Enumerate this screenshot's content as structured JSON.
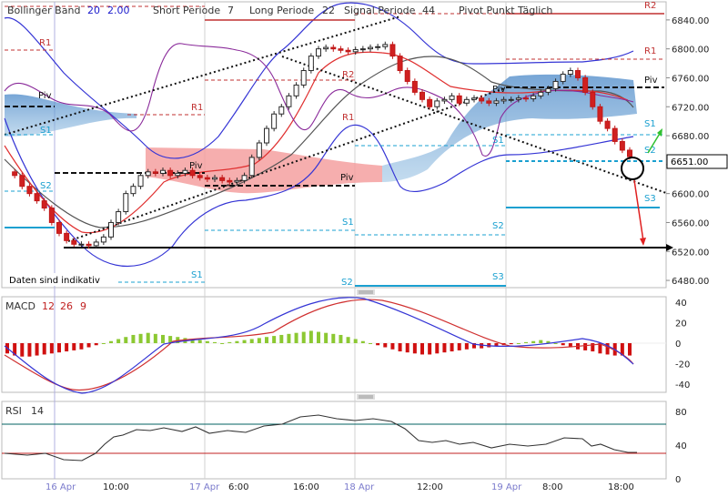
{
  "colors": {
    "up": "#7fbf1f",
    "down": "#d01010",
    "bb": "#3030e0",
    "ma_short": "#e03030",
    "ma_long": "#555555",
    "ichimoku_blue": "#5a9ad0",
    "ichimoku_red": "#f08080",
    "purple": "#8a2a9a",
    "pivot_blue": "#1aa0d0",
    "pivot_red": "#c03030",
    "rsi": "#006060"
  },
  "header": {
    "bb_label": "Bollinger Band",
    "bb_period": "20",
    "bb_dev": "2.00",
    "short_label": "Short Periode",
    "short_val": "7",
    "long_label": "Long Periode",
    "long_val": "22",
    "signal_label": "Signal Periode",
    "signal_val": "44",
    "pivot_label": "Pivot Punkt  Täglich"
  },
  "disclaimer": "Daten sind indikativ",
  "current_price": "6651.00",
  "pivot_labels": {
    "r2": "R2",
    "r1": "R1",
    "piv": "Piv",
    "s1": "S1",
    "s2": "S2",
    "s3": "S3"
  },
  "macd_panel": {
    "label": "MACD",
    "p1": "12",
    "p2": "26",
    "p3": "9"
  },
  "rsi_panel": {
    "label": "RSI",
    "p1": "14"
  },
  "chart_data": [
    {
      "type": "candlestick",
      "y_ticks": [
        "6840.00",
        "6800.00",
        "6760.00",
        "6720.00",
        "6680.00",
        "6640.00",
        "6600.00",
        "6560.00",
        "6520.00",
        "6480.00"
      ],
      "ylim": [
        6470,
        6865
      ],
      "x_ticks": [
        "16 Apr",
        "10:00",
        "17 Apr",
        "6:00",
        "16:00",
        "18 Apr",
        "12:00",
        "19 Apr",
        "8:00",
        "18:00"
      ],
      "close_series": [
        6630,
        6625,
        6610,
        6600,
        6590,
        6580,
        6560,
        6545,
        6535,
        6530,
        6530,
        6528,
        6533,
        6540,
        6560,
        6575,
        6600,
        6610,
        6625,
        6630,
        6628,
        6632,
        6625,
        6628,
        6632,
        6625,
        6622,
        6620,
        6622,
        6618,
        6616,
        6618,
        6625,
        6650,
        6670,
        6690,
        6710,
        6720,
        6735,
        6750,
        6770,
        6790,
        6800,
        6802,
        6800,
        6798,
        6796,
        6799,
        6800,
        6802,
        6803,
        6806,
        6790,
        6770,
        6755,
        6740,
        6730,
        6720,
        6728,
        6730,
        6735,
        6725,
        6730,
        6732,
        6728,
        6725,
        6728,
        6730,
        6730,
        6732,
        6731,
        6735,
        6740,
        6745,
        6755,
        6765,
        6770,
        6760,
        6740,
        6720,
        6700,
        6690,
        6672,
        6660,
        6651
      ]
    },
    {
      "type": "bar",
      "name": "MACD",
      "y_ticks": [
        "40",
        "20",
        "0",
        "-20",
        "-40"
      ],
      "ylim": [
        -46,
        46
      ],
      "histogram": [
        -10,
        -12,
        -13,
        -13,
        -12,
        -11,
        -10,
        -9,
        -8,
        -7,
        -6,
        -4,
        -2,
        0,
        2,
        4,
        6,
        8,
        9,
        10,
        9,
        8,
        7,
        6,
        5,
        4,
        3,
        2,
        1,
        0,
        1,
        2,
        3,
        4,
        5,
        6,
        7,
        8,
        9,
        10,
        11,
        12,
        11,
        10,
        9,
        8,
        6,
        4,
        2,
        0,
        -2,
        -4,
        -6,
        -8,
        -9,
        -10,
        -11,
        -11,
        -10,
        -9,
        -8,
        -7,
        -6,
        -5,
        -5,
        -4,
        -3,
        -2,
        -1,
        0,
        1,
        2,
        3,
        2,
        0,
        -2,
        -4,
        -6,
        -7,
        -8,
        -10,
        -11,
        -12,
        -12,
        -12
      ]
    },
    {
      "type": "line",
      "name": "RSI",
      "y_ticks": [
        "80",
        "40",
        "0"
      ],
      "ylim": [
        0,
        92
      ],
      "levels": [
        70,
        30
      ]
    }
  ]
}
